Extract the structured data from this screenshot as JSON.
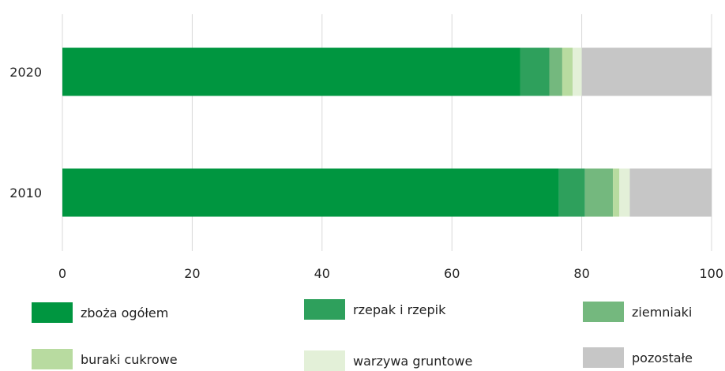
{
  "chart_data": {
    "type": "bar",
    "orientation": "horizontal",
    "stacked": true,
    "categories": [
      "2020",
      "2010"
    ],
    "series": [
      {
        "name": "zboża ogółem",
        "color": "#009640",
        "values": [
          70.5,
          76.5
        ]
      },
      {
        "name": "rzepak i rzepik",
        "color": "#2ea05c",
        "values": [
          4.5,
          4.0
        ]
      },
      {
        "name": "ziemniaki",
        "color": "#74b87e",
        "values": [
          2.0,
          4.3
        ]
      },
      {
        "name": "buraki cukrowe",
        "color": "#b8dba0",
        "values": [
          1.6,
          1.0
        ]
      },
      {
        "name": "warzywa gruntowe",
        "color": "#e3f0d8",
        "values": [
          1.4,
          1.6
        ]
      },
      {
        "name": "pozostałe",
        "color": "#c6c6c6",
        "values": [
          20.0,
          12.6
        ]
      }
    ],
    "x_ticks": [
      "0",
      "20",
      "40",
      "60",
      "80",
      "100"
    ],
    "xlim": [
      0,
      100
    ],
    "grid": true,
    "legend_position": "bottom",
    "title": "",
    "xlabel": "",
    "ylabel": ""
  }
}
